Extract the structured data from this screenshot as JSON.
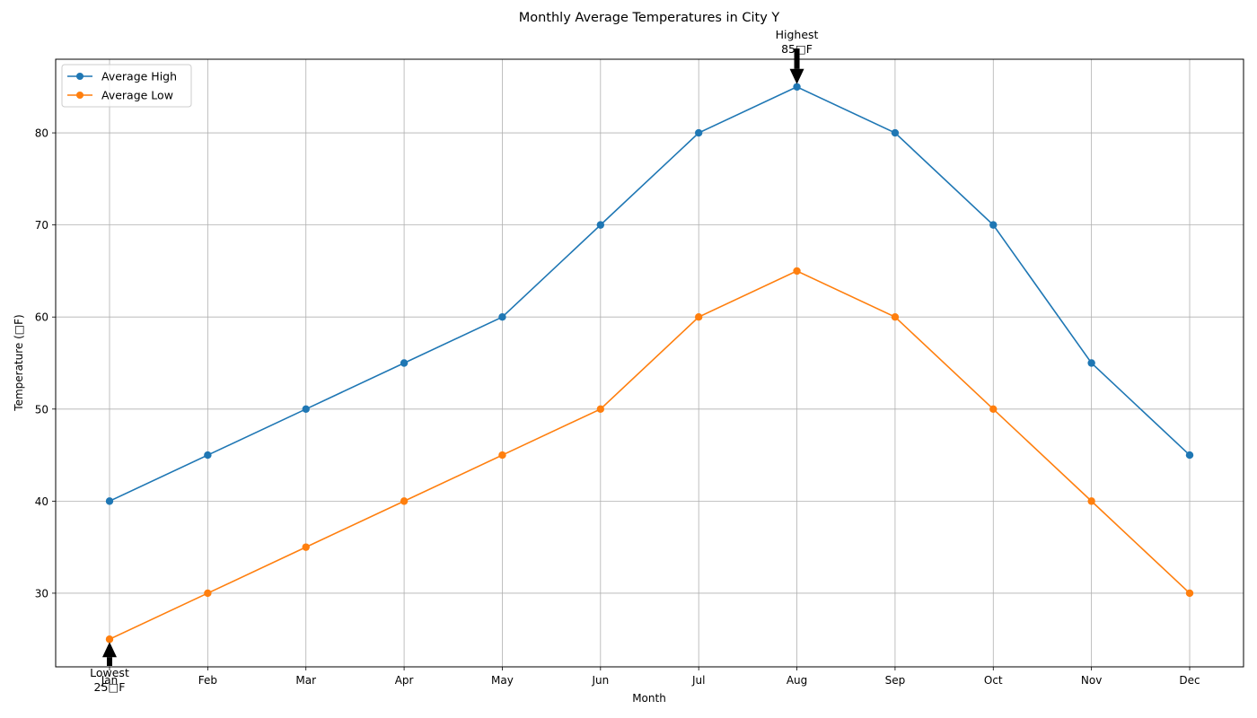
{
  "chart_data": {
    "type": "line",
    "title": "Monthly Average Temperatures in City Y",
    "xlabel": "Month",
    "ylabel": "Temperature (□F)",
    "categories": [
      "Jan",
      "Feb",
      "Mar",
      "Apr",
      "May",
      "Jun",
      "Jul",
      "Aug",
      "Sep",
      "Oct",
      "Nov",
      "Dec"
    ],
    "series": [
      {
        "name": "Average High",
        "color": "#1f77b4",
        "values": [
          40,
          45,
          50,
          55,
          60,
          70,
          80,
          85,
          80,
          70,
          55,
          45
        ]
      },
      {
        "name": "Average Low",
        "color": "#ff7f0e",
        "values": [
          25,
          30,
          35,
          40,
          45,
          50,
          60,
          65,
          60,
          50,
          40,
          30
        ]
      }
    ],
    "ylim": [
      22,
      88
    ],
    "yticks": [
      30,
      40,
      50,
      60,
      70,
      80
    ],
    "grid": true,
    "legend_position": "top-left",
    "annotations": [
      {
        "line1": "Highest",
        "line2": "85□F",
        "category": "Aug",
        "value": 85,
        "direction": "down"
      },
      {
        "line1": "Lowest",
        "line2": "25□F",
        "category": "Jan",
        "value": 25,
        "direction": "up"
      }
    ]
  }
}
